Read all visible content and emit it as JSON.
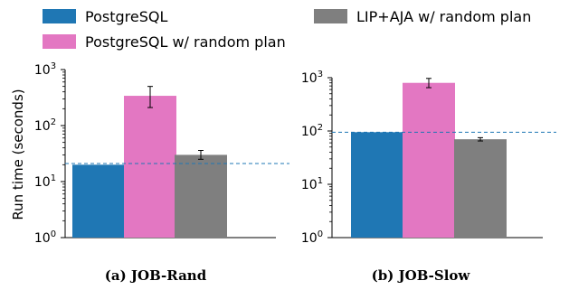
{
  "legend": {
    "items": [
      {
        "label": "PostgreSQL",
        "color": "#1f77b4"
      },
      {
        "label": "PostgreSQL w/ random plan",
        "color": "#e377c2"
      },
      {
        "label": "LIP+AJA w/ random plan",
        "color": "#7f7f7f"
      }
    ]
  },
  "ylabel": "Run time (seconds)",
  "chart_data": [
    {
      "type": "bar",
      "title": "(a) JOB-Rand",
      "scale": "log",
      "ylim": [
        1,
        1000
      ],
      "yticks": [
        {
          "value": 1,
          "base": "10",
          "exp": "0"
        },
        {
          "value": 10,
          "base": "10",
          "exp": "1"
        },
        {
          "value": 100,
          "base": "10",
          "exp": "2"
        },
        {
          "value": 1000,
          "base": "10",
          "exp": "3"
        }
      ],
      "series": [
        {
          "name": "PostgreSQL",
          "value": 20,
          "color": "#1f77b4"
        },
        {
          "name": "PostgreSQL w/ random plan",
          "value": 340,
          "error": [
            210,
            500
          ],
          "color": "#e377c2"
        },
        {
          "name": "LIP+AJA w/ random plan",
          "value": 30,
          "error": [
            25,
            36
          ],
          "color": "#7f7f7f"
        }
      ],
      "reference_line": 21
    },
    {
      "type": "bar",
      "title": "(b) JOB-Slow",
      "scale": "log",
      "ylim": [
        1,
        1000
      ],
      "yticks": [
        {
          "value": 1,
          "base": "10",
          "exp": "0"
        },
        {
          "value": 10,
          "base": "10",
          "exp": "1"
        },
        {
          "value": 100,
          "base": "10",
          "exp": "2"
        },
        {
          "value": 1000,
          "base": "10",
          "exp": "3"
        }
      ],
      "series": [
        {
          "name": "PostgreSQL",
          "value": 95,
          "color": "#1f77b4"
        },
        {
          "name": "PostgreSQL w/ random plan",
          "value": 800,
          "error": [
            650,
            970
          ],
          "color": "#e377c2"
        },
        {
          "name": "LIP+AJA w/ random plan",
          "value": 70,
          "error": [
            65,
            75
          ],
          "color": "#7f7f7f"
        }
      ],
      "reference_line": 95
    }
  ]
}
